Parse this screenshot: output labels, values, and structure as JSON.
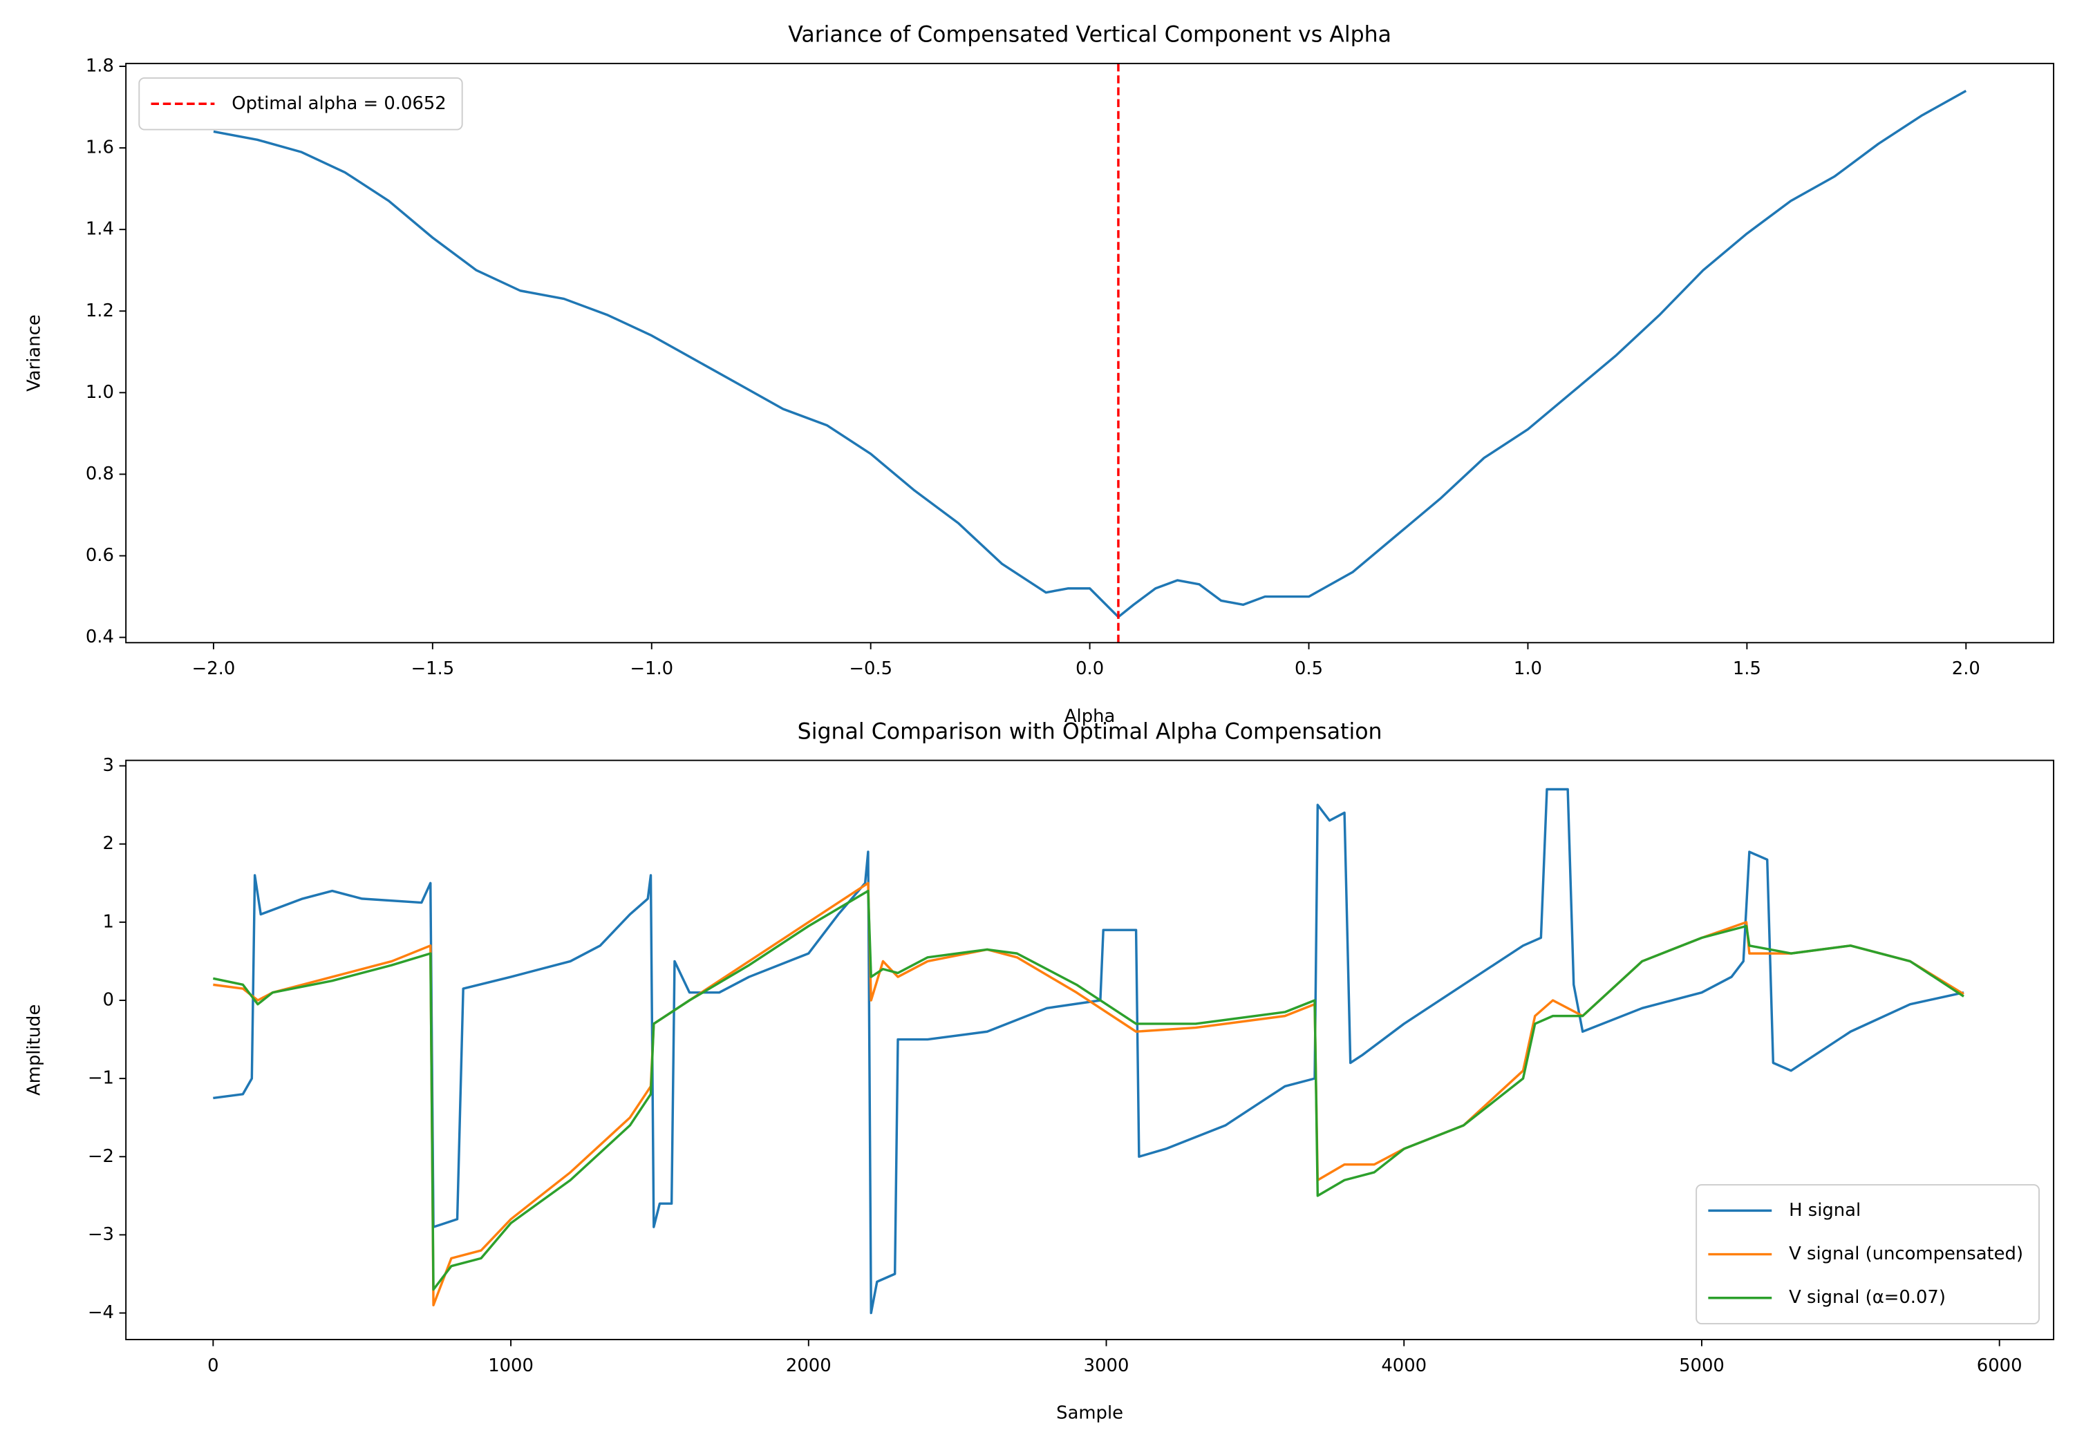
{
  "chart_data": [
    {
      "type": "line",
      "title": "Variance of Compensated Vertical Component vs Alpha",
      "xlabel": "Alpha",
      "ylabel": "Variance",
      "xlim": [
        -2.2,
        2.2
      ],
      "ylim": [
        0.387,
        1.807
      ],
      "xticks": [
        {
          "value": -2,
          "label": "−2.0"
        },
        {
          "value": -1.5,
          "label": "−1.5"
        },
        {
          "value": -1,
          "label": "−1.0"
        },
        {
          "value": -0.5,
          "label": "−0.5"
        },
        {
          "value": 0,
          "label": "0.0"
        },
        0.5,
        {
          "value": 1,
          "label": "1.0"
        },
        1.5,
        {
          "value": 2,
          "label": "2.0"
        }
      ],
      "yticks": [
        0.4,
        0.6,
        0.8,
        {
          "value": 1,
          "label": "1.0"
        },
        1.2,
        1.4,
        1.6,
        1.8
      ],
      "x": [
        -2.0,
        -1.9,
        -1.8,
        -1.7,
        -1.6,
        -1.5,
        -1.4,
        -1.3,
        -1.2,
        -1.1,
        -1.0,
        -0.9,
        -0.8,
        -0.7,
        -0.6,
        -0.5,
        -0.4,
        -0.3,
        -0.2,
        -0.1,
        -0.05,
        0.0,
        0.0652,
        0.1,
        0.15,
        0.2,
        0.25,
        0.3,
        0.35,
        0.4,
        0.5,
        0.6,
        0.7,
        0.8,
        0.9,
        1.0,
        1.1,
        1.2,
        1.3,
        1.4,
        1.5,
        1.6,
        1.7,
        1.8,
        1.9,
        2.0
      ],
      "values": [
        1.64,
        1.62,
        1.59,
        1.54,
        1.47,
        1.38,
        1.3,
        1.25,
        1.23,
        1.19,
        1.14,
        1.08,
        1.02,
        0.96,
        0.92,
        0.85,
        0.76,
        0.68,
        0.58,
        0.51,
        0.52,
        0.52,
        0.45,
        0.48,
        0.52,
        0.54,
        0.53,
        0.49,
        0.48,
        0.5,
        0.5,
        0.56,
        0.65,
        0.74,
        0.84,
        0.91,
        1.0,
        1.09,
        1.19,
        1.3,
        1.39,
        1.47,
        1.53,
        1.61,
        1.68,
        1.74
      ],
      "color": "#1f77b4",
      "vline": {
        "x": 0.0652,
        "label": "Optimal alpha = 0.0652",
        "color": "#ff0000"
      },
      "legend": "upper left"
    },
    {
      "type": "line",
      "title": "Signal Comparison with Optimal Alpha Compensation",
      "xlabel": "Sample",
      "ylabel": "Amplitude",
      "xlim": [
        -293,
        6182
      ],
      "ylim": [
        -4.34,
        3.07
      ],
      "xticks": [
        0,
        1000,
        2000,
        3000,
        4000,
        5000,
        6000
      ],
      "yticks": [
        {
          "value": -4,
          "label": "−4"
        },
        {
          "value": -3,
          "label": "−3"
        },
        {
          "value": -2,
          "label": "−2"
        },
        {
          "value": -1,
          "label": "−1"
        },
        0,
        1,
        2,
        3
      ],
      "series": [
        {
          "name": "H signal",
          "color": "#1f77b4",
          "x": [
            0,
            100,
            130,
            140,
            160,
            300,
            400,
            500,
            700,
            730,
            740,
            820,
            840,
            1000,
            1200,
            1300,
            1400,
            1460,
            1470,
            1480,
            1500,
            1540,
            1550,
            1600,
            1700,
            1800,
            2000,
            2100,
            2190,
            2200,
            2210,
            2230,
            2290,
            2300,
            2400,
            2600,
            2800,
            2980,
            2990,
            3100,
            3110,
            3200,
            3400,
            3600,
            3700,
            3710,
            3750,
            3800,
            3820,
            3860,
            4000,
            4200,
            4400,
            4460,
            4480,
            4550,
            4570,
            4600,
            4800,
            5000,
            5100,
            5140,
            5160,
            5220,
            5240,
            5300,
            5500,
            5700,
            5880
          ],
          "values": [
            -1.25,
            -1.2,
            -1.0,
            1.6,
            1.1,
            1.3,
            1.4,
            1.3,
            1.25,
            1.5,
            -2.9,
            -2.8,
            0.15,
            0.3,
            0.5,
            0.7,
            1.1,
            1.3,
            1.6,
            -2.9,
            -2.6,
            -2.6,
            0.5,
            0.1,
            0.1,
            0.3,
            0.6,
            1.1,
            1.5,
            1.9,
            -4.0,
            -3.6,
            -3.5,
            -0.5,
            -0.5,
            -0.4,
            -0.1,
            0.0,
            0.9,
            0.9,
            -2.0,
            -1.9,
            -1.6,
            -1.1,
            -1.0,
            2.5,
            2.3,
            2.4,
            -0.8,
            -0.7,
            -0.3,
            0.2,
            0.7,
            0.8,
            2.7,
            2.7,
            0.2,
            -0.4,
            -0.1,
            0.1,
            0.3,
            0.5,
            1.9,
            1.8,
            -0.8,
            -0.9,
            -0.4,
            -0.05,
            0.1
          ]
        },
        {
          "name": "V signal (uncompensated)",
          "color": "#ff7f0e",
          "x": [
            0,
            100,
            150,
            200,
            400,
            600,
            730,
            740,
            800,
            900,
            1000,
            1200,
            1400,
            1470,
            1480,
            1600,
            1800,
            2000,
            2200,
            2210,
            2250,
            2300,
            2400,
            2600,
            2700,
            2900,
            3100,
            3300,
            3600,
            3700,
            3710,
            3800,
            3900,
            4000,
            4200,
            4400,
            4440,
            4500,
            4600,
            4800,
            5000,
            5150,
            5160,
            5300,
            5500,
            5700,
            5880
          ],
          "values": [
            0.2,
            0.15,
            0.0,
            0.1,
            0.3,
            0.5,
            0.7,
            -3.9,
            -3.3,
            -3.2,
            -2.8,
            -2.2,
            -1.5,
            -1.1,
            -0.3,
            0.0,
            0.5,
            1.0,
            1.5,
            0.0,
            0.5,
            0.3,
            0.5,
            0.65,
            0.55,
            0.1,
            -0.4,
            -0.35,
            -0.2,
            -0.05,
            -2.3,
            -2.1,
            -2.1,
            -1.9,
            -1.6,
            -0.9,
            -0.2,
            0.0,
            -0.2,
            0.5,
            0.8,
            1.0,
            0.6,
            0.6,
            0.7,
            0.5,
            0.08
          ]
        },
        {
          "name": "V signal (α=0.07)",
          "color": "#2ca02c",
          "x": [
            0,
            100,
            150,
            200,
            400,
            600,
            730,
            740,
            800,
            900,
            1000,
            1200,
            1400,
            1470,
            1480,
            1600,
            1800,
            2000,
            2200,
            2210,
            2250,
            2300,
            2400,
            2600,
            2700,
            2900,
            3100,
            3300,
            3600,
            3700,
            3710,
            3800,
            3900,
            4000,
            4200,
            4400,
            4440,
            4500,
            4600,
            4800,
            5000,
            5150,
            5160,
            5300,
            5500,
            5700,
            5880
          ],
          "values": [
            0.28,
            0.2,
            -0.05,
            0.1,
            0.25,
            0.45,
            0.6,
            -3.7,
            -3.4,
            -3.3,
            -2.85,
            -2.3,
            -1.6,
            -1.2,
            -0.3,
            0.0,
            0.45,
            0.95,
            1.4,
            0.3,
            0.4,
            0.35,
            0.55,
            0.65,
            0.6,
            0.2,
            -0.3,
            -0.3,
            -0.15,
            0.0,
            -2.5,
            -2.3,
            -2.2,
            -1.9,
            -1.6,
            -1.0,
            -0.3,
            -0.2,
            -0.2,
            0.5,
            0.8,
            0.95,
            0.7,
            0.6,
            0.7,
            0.5,
            0.05
          ]
        }
      ],
      "legend": "lower right"
    }
  ]
}
